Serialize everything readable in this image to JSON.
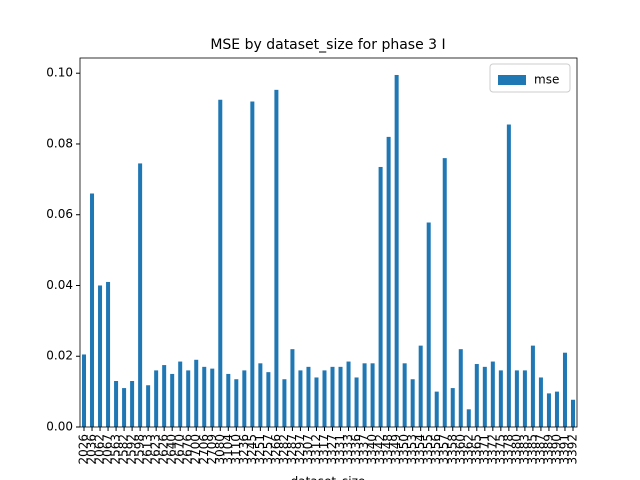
{
  "chart_data": {
    "type": "bar",
    "title": "MSE by dataset_size for phase 3 I",
    "xlabel": "dataset_size",
    "categories": [
      "2026",
      "2036",
      "2062",
      "2067",
      "2563",
      "2582",
      "2592",
      "2598",
      "2613",
      "2623",
      "2626",
      "2640",
      "2670",
      "2676",
      "2700",
      "2706",
      "2709",
      "3080",
      "3104",
      "3110",
      "3236",
      "3245",
      "3251",
      "3257",
      "3266",
      "3282",
      "3287",
      "3297",
      "3307",
      "3312",
      "3317",
      "3327",
      "3331",
      "3333",
      "3336",
      "3337",
      "3340",
      "3342",
      "3348",
      "3349",
      "3350",
      "3353",
      "3354",
      "3355",
      "3356",
      "3357",
      "3358",
      "3360",
      "3362",
      "3365",
      "3371",
      "3372",
      "3375",
      "3378",
      "3380",
      "3383",
      "3385",
      "3387",
      "3389",
      "3390",
      "3391",
      "3392"
    ],
    "series": [
      {
        "name": "mse",
        "color": "#1f77b4",
        "values": [
          0.0205,
          0.066,
          0.04,
          0.041,
          0.013,
          0.011,
          0.013,
          0.0745,
          0.0118,
          0.016,
          0.0175,
          0.015,
          0.0185,
          0.016,
          0.019,
          0.017,
          0.0165,
          0.0925,
          0.015,
          0.0135,
          0.016,
          0.092,
          0.018,
          0.0155,
          0.0953,
          0.0135,
          0.022,
          0.016,
          0.017,
          0.014,
          0.016,
          0.017,
          0.017,
          0.0185,
          0.014,
          0.018,
          0.018,
          0.0735,
          0.082,
          0.0995,
          0.018,
          0.0135,
          0.023,
          0.0578,
          0.01,
          0.076,
          0.011,
          0.022,
          0.005,
          0.0178,
          0.017,
          0.0185,
          0.016,
          0.0855,
          0.016,
          0.016,
          0.023,
          0.014,
          0.0095,
          0.01,
          0.021,
          0.0077
        ]
      }
    ],
    "ylim": [
      0,
      0.1043
    ],
    "yticks": [
      {
        "value": 0,
        "label": "0.00"
      },
      {
        "value": 0.02,
        "label": "0.02"
      },
      {
        "value": 0.04,
        "label": "0.04"
      },
      {
        "value": 0.06,
        "label": "0.06"
      },
      {
        "value": 0.08,
        "label": "0.08"
      },
      {
        "value": 0.1,
        "label": "0.10"
      }
    ],
    "legend": "upper right",
    "grid": false
  }
}
